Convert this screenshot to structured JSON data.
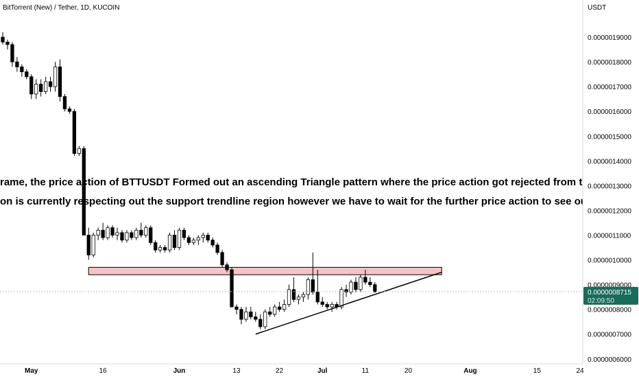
{
  "header": {
    "symbol_line": "BitTorrent (New) / Tether, 1D, KUCOIN"
  },
  "price_axis": {
    "currency": "USDT",
    "last_price": "0.0000008715",
    "countdown": "02:09:50",
    "last_price_color": "#1b6b5a"
  },
  "annotation": {
    "line1": "rame, the price action of BTTUSDT Formed out an ascending Triangle pattern where the price action got rejected from the Horizontal R",
    "line2": "on is currently respecting out the support trendline region however we have to wait for the further price action to see out the Breakout o"
  },
  "colors": {
    "up_candle_fill": "#ffffff",
    "down_candle_fill": "#000000",
    "candle_outline": "#000000",
    "resistance_zone_fill": "#f2c4c6",
    "resistance_zone_border": "#000000",
    "trendline": "#000000",
    "annotation_text": "#000000"
  },
  "chart_data": {
    "type": "candlestick",
    "timeframe": "1D",
    "y_tick_labels": [
      "0.0000019000",
      "0.0000018000",
      "0.0000017000",
      "0.0000016000",
      "0.0000015000",
      "0.0000014000",
      "0.0000013000",
      "0.0000012000",
      "0.0000011000",
      "0.0000010000",
      "0.0000009000",
      "0.0000008000",
      "0.0000007000",
      "0.0000006000"
    ],
    "y_tick_values": [
      1.9e-06,
      1.8e-06,
      1.7e-06,
      1.6e-06,
      1.5e-06,
      1.4e-06,
      1.3e-06,
      1.2e-06,
      1.1e-06,
      1e-06,
      9e-07,
      8e-07,
      7e-07,
      6e-07
    ],
    "ylim": [
      5.8e-07,
      2.05e-06
    ],
    "x_tick_labels": [
      "May",
      "16",
      "Jun",
      "13",
      "22",
      "Jul",
      "11",
      "20",
      "Aug",
      "15",
      "24"
    ],
    "x_tick_day_index": [
      0,
      15,
      31,
      43,
      52,
      61,
      70,
      79,
      92,
      106,
      115
    ],
    "x_range_days": [
      -6,
      115
    ],
    "last_price": 8.715e-07,
    "candles": [
      {
        "d": -6,
        "o": 1.9e-06,
        "h": 1.92e-06,
        "l": 1.87e-06,
        "c": 1.88e-06
      },
      {
        "d": -5,
        "o": 1.88e-06,
        "h": 1.89e-06,
        "l": 1.85e-06,
        "c": 1.87e-06
      },
      {
        "d": -4,
        "o": 1.87e-06,
        "h": 1.88e-06,
        "l": 1.78e-06,
        "c": 1.8e-06
      },
      {
        "d": -3,
        "o": 1.8e-06,
        "h": 1.82e-06,
        "l": 1.76e-06,
        "c": 1.78e-06
      },
      {
        "d": -2,
        "o": 1.78e-06,
        "h": 1.79e-06,
        "l": 1.74e-06,
        "c": 1.76e-06
      },
      {
        "d": -1,
        "o": 1.76e-06,
        "h": 1.77e-06,
        "l": 1.73e-06,
        "c": 1.74e-06
      },
      {
        "d": 0,
        "o": 1.74e-06,
        "h": 1.75e-06,
        "l": 1.65e-06,
        "c": 1.67e-06
      },
      {
        "d": 1,
        "o": 1.67e-06,
        "h": 1.73e-06,
        "l": 1.65e-06,
        "c": 1.71e-06
      },
      {
        "d": 2,
        "o": 1.71e-06,
        "h": 1.73e-06,
        "l": 1.66e-06,
        "c": 1.68e-06
      },
      {
        "d": 3,
        "o": 1.68e-06,
        "h": 1.74e-06,
        "l": 1.67e-06,
        "c": 1.72e-06
      },
      {
        "d": 4,
        "o": 1.72e-06,
        "h": 1.74e-06,
        "l": 1.68e-06,
        "c": 1.7e-06
      },
      {
        "d": 5,
        "o": 1.7e-06,
        "h": 1.8e-06,
        "l": 1.68e-06,
        "c": 1.78e-06
      },
      {
        "d": 6,
        "o": 1.78e-06,
        "h": 1.81e-06,
        "l": 1.64e-06,
        "c": 1.66e-06
      },
      {
        "d": 7,
        "o": 1.66e-06,
        "h": 1.67e-06,
        "l": 1.6e-06,
        "c": 1.61e-06
      },
      {
        "d": 8,
        "o": 1.61e-06,
        "h": 1.62e-06,
        "l": 1.59e-06,
        "c": 1.6e-06
      },
      {
        "d": 9,
        "o": 1.6e-06,
        "h": 1.61e-06,
        "l": 1.42e-06,
        "c": 1.43e-06
      },
      {
        "d": 10,
        "o": 1.43e-06,
        "h": 1.46e-06,
        "l": 1.42e-06,
        "c": 1.45e-06
      },
      {
        "d": 11,
        "o": 1.45e-06,
        "h": 1.46e-06,
        "l": 1.1e-06,
        "c": 1.1e-06
      },
      {
        "d": 12,
        "o": 1.1e-06,
        "h": 1.13e-06,
        "l": 1e-06,
        "c": 1.02e-06
      },
      {
        "d": 13,
        "o": 1.02e-06,
        "h": 1.11e-06,
        "l": 1.01e-06,
        "c": 1.1e-06
      },
      {
        "d": 14,
        "o": 1.1e-06,
        "h": 1.13e-06,
        "l": 1.08e-06,
        "c": 1.12e-06
      },
      {
        "d": 15,
        "o": 1.12e-06,
        "h": 1.15e-06,
        "l": 1.08e-06,
        "c": 1.09e-06
      },
      {
        "d": 16,
        "o": 1.09e-06,
        "h": 1.14e-06,
        "l": 1.08e-06,
        "c": 1.13e-06
      },
      {
        "d": 17,
        "o": 1.13e-06,
        "h": 1.14e-06,
        "l": 1.09e-06,
        "c": 1.1e-06
      },
      {
        "d": 18,
        "o": 1.1e-06,
        "h": 1.13e-06,
        "l": 1.08e-06,
        "c": 1.11e-06
      },
      {
        "d": 19,
        "o": 1.11e-06,
        "h": 1.12e-06,
        "l": 1.07e-06,
        "c": 1.08e-06
      },
      {
        "d": 20,
        "o": 1.08e-06,
        "h": 1.12e-06,
        "l": 1.07e-06,
        "c": 1.11e-06
      },
      {
        "d": 21,
        "o": 1.11e-06,
        "h": 1.12e-06,
        "l": 1.08e-06,
        "c": 1.09e-06
      },
      {
        "d": 22,
        "o": 1.09e-06,
        "h": 1.13e-06,
        "l": 1.08e-06,
        "c": 1.12e-06
      },
      {
        "d": 23,
        "o": 1.12e-06,
        "h": 1.15e-06,
        "l": 1.09e-06,
        "c": 1.1e-06
      },
      {
        "d": 24,
        "o": 1.1e-06,
        "h": 1.14e-06,
        "l": 1.09e-06,
        "c": 1.13e-06
      },
      {
        "d": 25,
        "o": 1.13e-06,
        "h": 1.14e-06,
        "l": 1.06e-06,
        "c": 1.07e-06
      },
      {
        "d": 26,
        "o": 1.07e-06,
        "h": 1.08e-06,
        "l": 1.03e-06,
        "c": 1.04e-06
      },
      {
        "d": 27,
        "o": 1.04e-06,
        "h": 1.06e-06,
        "l": 1.03e-06,
        "c": 1.05e-06
      },
      {
        "d": 28,
        "o": 1.05e-06,
        "h": 1.06e-06,
        "l": 1.03e-06,
        "c": 1.04e-06
      },
      {
        "d": 29,
        "o": 1.04e-06,
        "h": 1.11e-06,
        "l": 1.03e-06,
        "c": 1.1e-06
      },
      {
        "d": 30,
        "o": 1.1e-06,
        "h": 1.12e-06,
        "l": 1.04e-06,
        "c": 1.05e-06
      },
      {
        "d": 31,
        "o": 1.05e-06,
        "h": 1.13e-06,
        "l": 1.04e-06,
        "c": 1.12e-06
      },
      {
        "d": 32,
        "o": 1.12e-06,
        "h": 1.13e-06,
        "l": 1.08e-06,
        "c": 1.09e-06
      },
      {
        "d": 33,
        "o": 1.09e-06,
        "h": 1.1e-06,
        "l": 1.06e-06,
        "c": 1.07e-06
      },
      {
        "d": 34,
        "o": 1.07e-06,
        "h": 1.09e-06,
        "l": 1.06e-06,
        "c": 1.08e-06
      },
      {
        "d": 35,
        "o": 1.08e-06,
        "h": 1.1e-06,
        "l": 1.06e-06,
        "c": 1.09e-06
      },
      {
        "d": 36,
        "o": 1.09e-06,
        "h": 1.11e-06,
        "l": 1.07e-06,
        "c": 1.1e-06
      },
      {
        "d": 37,
        "o": 1.1e-06,
        "h": 1.11e-06,
        "l": 1.07e-06,
        "c": 1.08e-06
      },
      {
        "d": 38,
        "o": 1.08e-06,
        "h": 1.09e-06,
        "l": 1.05e-06,
        "c": 1.06e-06
      },
      {
        "d": 39,
        "o": 1.06e-06,
        "h": 1.07e-06,
        "l": 1.02e-06,
        "c": 1.03e-06
      },
      {
        "d": 40,
        "o": 1.03e-06,
        "h": 1.04e-06,
        "l": 9.7e-07,
        "c": 9.8e-07
      },
      {
        "d": 41,
        "o": 9.8e-07,
        "h": 9.9e-07,
        "l": 9.5e-07,
        "c": 9.6e-07
      },
      {
        "d": 42,
        "o": 9.6e-07,
        "h": 9.7e-07,
        "l": 8.1e-07,
        "c": 8.1e-07
      },
      {
        "d": 43,
        "o": 8.1e-07,
        "h": 8.2e-07,
        "l": 7.8e-07,
        "c": 8e-07
      },
      {
        "d": 44,
        "o": 8e-07,
        "h": 8.1e-07,
        "l": 7.4e-07,
        "c": 7.6e-07
      },
      {
        "d": 45,
        "o": 7.6e-07,
        "h": 8.1e-07,
        "l": 7.5e-07,
        "c": 7.9e-07
      },
      {
        "d": 46,
        "o": 7.9e-07,
        "h": 8.1e-07,
        "l": 7.6e-07,
        "c": 7.7e-07
      },
      {
        "d": 47,
        "o": 7.7e-07,
        "h": 7.9e-07,
        "l": 7.5e-07,
        "c": 7.6e-07
      },
      {
        "d": 48,
        "o": 7.6e-07,
        "h": 7.8e-07,
        "l": 7.2e-07,
        "c": 7.3e-07
      },
      {
        "d": 49,
        "o": 7.3e-07,
        "h": 8e-07,
        "l": 7.2e-07,
        "c": 7.9e-07
      },
      {
        "d": 50,
        "o": 7.9e-07,
        "h": 8.1e-07,
        "l": 7.7e-07,
        "c": 7.8e-07
      },
      {
        "d": 51,
        "o": 7.8e-07,
        "h": 8.2e-07,
        "l": 7.7e-07,
        "c": 8.1e-07
      },
      {
        "d": 52,
        "o": 8.1e-07,
        "h": 8.3e-07,
        "l": 7.9e-07,
        "c": 8e-07
      },
      {
        "d": 53,
        "o": 8e-07,
        "h": 8.4e-07,
        "l": 7.9e-07,
        "c": 8.2e-07
      },
      {
        "d": 54,
        "o": 8.2e-07,
        "h": 9e-07,
        "l": 8.1e-07,
        "c": 8.8e-07
      },
      {
        "d": 55,
        "o": 8.8e-07,
        "h": 9.3e-07,
        "l": 8.3e-07,
        "c": 8.4e-07
      },
      {
        "d": 56,
        "o": 8.4e-07,
        "h": 8.6e-07,
        "l": 8.2e-07,
        "c": 8.5e-07
      },
      {
        "d": 57,
        "o": 8.5e-07,
        "h": 8.7e-07,
        "l": 8.3e-07,
        "c": 8.6e-07
      },
      {
        "d": 58,
        "o": 8.6e-07,
        "h": 9.3e-07,
        "l": 8.4e-07,
        "c": 9.2e-07
      },
      {
        "d": 59,
        "o": 9.2e-07,
        "h": 1.03e-06,
        "l": 8.6e-07,
        "c": 8.7e-07
      },
      {
        "d": 60,
        "o": 8.7e-07,
        "h": 9.6e-07,
        "l": 8.2e-07,
        "c": 8.3e-07
      },
      {
        "d": 61,
        "o": 8.3e-07,
        "h": 8.5e-07,
        "l": 8.1e-07,
        "c": 8.2e-07
      },
      {
        "d": 62,
        "o": 8.2e-07,
        "h": 8.3e-07,
        "l": 8e-07,
        "c": 8.1e-07
      },
      {
        "d": 63,
        "o": 8.1e-07,
        "h": 8.3e-07,
        "l": 7.9e-07,
        "c": 8.2e-07
      },
      {
        "d": 64,
        "o": 8.2e-07,
        "h": 8.3e-07,
        "l": 8e-07,
        "c": 8.1e-07
      },
      {
        "d": 65,
        "o": 8.1e-07,
        "h": 8.9e-07,
        "l": 8e-07,
        "c": 8.8e-07
      },
      {
        "d": 66,
        "o": 8.8e-07,
        "h": 9e-07,
        "l": 8.5e-07,
        "c": 8.7e-07
      },
      {
        "d": 67,
        "o": 8.7e-07,
        "h": 9.2e-07,
        "l": 8.6e-07,
        "c": 9.1e-07
      },
      {
        "d": 68,
        "o": 9.1e-07,
        "h": 9.3e-07,
        "l": 8.7e-07,
        "c": 8.8e-07
      },
      {
        "d": 69,
        "o": 8.8e-07,
        "h": 9.4e-07,
        "l": 8.7e-07,
        "c": 9.3e-07
      },
      {
        "d": 70,
        "o": 9.3e-07,
        "h": 9.6e-07,
        "l": 9e-07,
        "c": 9.1e-07
      },
      {
        "d": 71,
        "o": 9.1e-07,
        "h": 9.3e-07,
        "l": 8.9e-07,
        "c": 9e-07
      },
      {
        "d": 72,
        "o": 9e-07,
        "h": 9.1e-07,
        "l": 8.7e-07,
        "c": 8.7e-07
      }
    ],
    "resistance_zone": {
      "d_start": 12,
      "d_end": 86,
      "low": 9.4e-07,
      "high": 9.7e-07
    },
    "support_trendline": {
      "d1": 47,
      "p1": 7e-07,
      "d2": 86,
      "p2": 9.5e-07
    }
  }
}
